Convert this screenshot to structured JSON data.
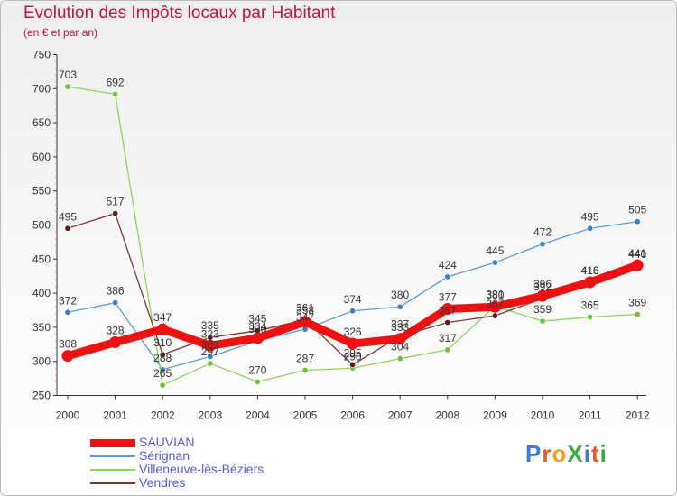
{
  "title": "Evolution des Impôts locaux par Habitant",
  "subtitle": "(en € et par an)",
  "logo": {
    "text": "ProXiti",
    "letters": [
      "P",
      "r",
      "o",
      "X",
      "i",
      "t",
      "i"
    ],
    "colors": [
      "#3a7bd5",
      "#e4572e",
      "#f2a01a",
      "#39a845",
      "#3a7bd5",
      "#e4572e",
      "#39a845"
    ]
  },
  "chart_data": {
    "type": "line",
    "title": "Evolution des Impôts locaux par Habitant",
    "subtitle": "(en € et par an)",
    "xlabel": "",
    "ylabel": "",
    "ylim": [
      250,
      750
    ],
    "yticks": [
      250,
      300,
      350,
      400,
      450,
      500,
      550,
      600,
      650,
      700,
      750
    ],
    "categories": [
      "2000",
      "2001",
      "2002",
      "2003",
      "2004",
      "2005",
      "2006",
      "2007",
      "2008",
      "2009",
      "2010",
      "2011",
      "2012"
    ],
    "grid": false,
    "legend_position": "bottom-left",
    "series": [
      {
        "name": "Sérignan",
        "color": "#5b9bd5",
        "marker": "#3d7ec9",
        "width": 1.3,
        "values": [
          372,
          386,
          288,
          307,
          330,
          347,
          374,
          380,
          424,
          445,
          472,
          495,
          505
        ],
        "labels": [
          "372",
          "386",
          "288",
          "307",
          "330",
          "347",
          "374",
          "380",
          "424",
          "445",
          "472",
          "495",
          "505"
        ]
      },
      {
        "name": "Villeneuve-lès-Béziers",
        "color": "#8fd45a",
        "marker": "#6cc23a",
        "width": 1.3,
        "values": [
          703,
          692,
          265,
          297,
          270,
          287,
          290,
          304,
          317,
          381,
          359,
          365,
          369
        ],
        "labels": [
          "703",
          "692",
          "265",
          "297",
          "270",
          "287",
          "290",
          "304",
          "317",
          "381",
          "359",
          "365",
          "369"
        ]
      },
      {
        "name": "Vendres",
        "color": "#7b3535",
        "marker": "#5e1b1b",
        "width": 1.3,
        "values": [
          495,
          517,
          310,
          335,
          345,
          361,
          295,
          337,
          357,
          367,
          392,
          416,
          440
        ],
        "labels": [
          "495",
          "517",
          "310",
          "335",
          "345",
          "361",
          "295",
          "337",
          "357",
          "367",
          "392",
          "416",
          "440"
        ]
      },
      {
        "name": "SAUVIAN",
        "color": "#ee1111",
        "marker": "#ee1111",
        "width": 9,
        "values": [
          308,
          328,
          347,
          323,
          334,
          358,
          326,
          333,
          377,
          380,
          396,
          416,
          441
        ],
        "labels": [
          "308",
          "328",
          "347",
          "323",
          "334",
          "358",
          "326",
          "333",
          "377",
          "380",
          "396",
          "416",
          "441"
        ]
      }
    ]
  },
  "legend": [
    {
      "label": "SAUVIAN",
      "color": "#ee1111",
      "thickness": 9
    },
    {
      "label": "Sérignan",
      "color": "#5b9bd5",
      "thickness": 2
    },
    {
      "label": "Villeneuve-lès-Béziers",
      "color": "#8fd45a",
      "thickness": 2
    },
    {
      "label": "Vendres",
      "color": "#7b3535",
      "thickness": 2
    }
  ]
}
